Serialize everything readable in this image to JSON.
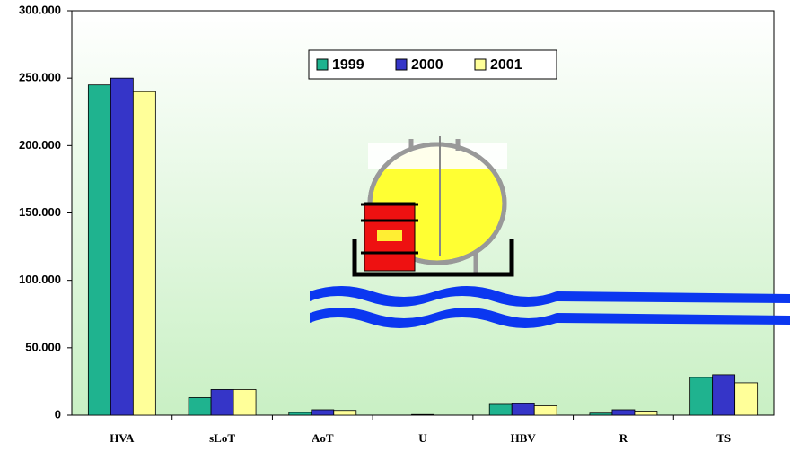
{
  "chart_data": {
    "type": "bar",
    "categories": [
      "HVA",
      "sLoT",
      "AoT",
      "U",
      "HBV",
      "R",
      "TS"
    ],
    "series": [
      {
        "name": "1999",
        "color": "#1fb38f",
        "values": [
          245000,
          13000,
          2000,
          0,
          8000,
          1500,
          28000
        ]
      },
      {
        "name": "2000",
        "color": "#3535c8",
        "values": [
          250000,
          19000,
          4000,
          500,
          8500,
          4000,
          30000
        ]
      },
      {
        "name": "2001",
        "color": "#ffff99",
        "values": [
          240000,
          19000,
          3500,
          0,
          7000,
          3000,
          24000
        ]
      }
    ],
    "ylim": [
      0,
      300000
    ],
    "yticks": [
      0,
      {
        "value": 50000,
        "label": "50.000"
      },
      {
        "value": 100000,
        "label": "100.000"
      },
      {
        "value": 150000,
        "label": "150.000"
      },
      {
        "value": 200000,
        "label": "200.000"
      },
      {
        "value": 250000,
        "label": "250.000"
      },
      {
        "value": 300000,
        "label": "300.000"
      }
    ],
    "legend": "top"
  }
}
